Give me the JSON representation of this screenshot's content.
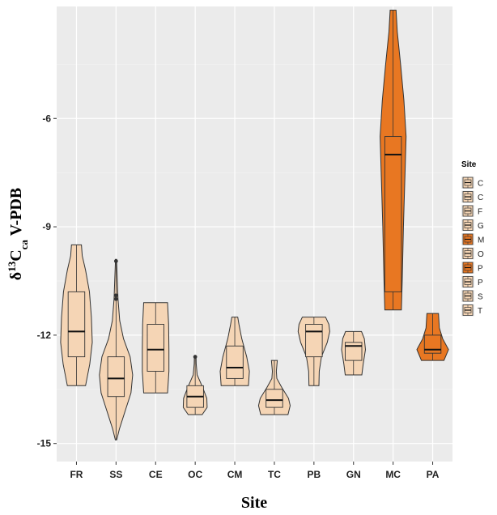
{
  "chart_data": {
    "type": "violin",
    "xlabel": "Site",
    "ylabel": {
      "main": "δ",
      "sup": "13",
      "sym": "C",
      "sub": "ca",
      "tail": " V-PDB"
    },
    "y_ticks": [
      -6,
      -9,
      -12,
      -15
    ],
    "y_tick_labels": [
      "-6",
      "-9",
      "-12",
      "-15"
    ],
    "ylim": [
      -15.5,
      -2.9
    ],
    "grid": true,
    "legend": {
      "title": "Site",
      "placement": "right",
      "entries": [
        {
          "label": "C",
          "color": "#f5d5b5"
        },
        {
          "label": "C",
          "color": "#f5d5b5"
        },
        {
          "label": "F",
          "color": "#f5d5b5"
        },
        {
          "label": "G",
          "color": "#f5d5b5"
        },
        {
          "label": "M",
          "color": "#e87722"
        },
        {
          "label": "O",
          "color": "#f5d5b5"
        },
        {
          "label": "P",
          "color": "#e87722"
        },
        {
          "label": "P",
          "color": "#f5d5b5"
        },
        {
          "label": "S",
          "color": "#f5d5b5"
        },
        {
          "label": "T",
          "color": "#f5d5b5"
        }
      ]
    },
    "colors": {
      "light": "#f5d5b5",
      "dark": "#e87722",
      "panel": "#ebebeb",
      "outline": "#333333"
    },
    "categories": [
      "FR",
      "SS",
      "CE",
      "OC",
      "CM",
      "TC",
      "PB",
      "GN",
      "MC",
      "PA"
    ],
    "sites": [
      {
        "name": "FR",
        "fill": "light",
        "min": -13.4,
        "max": -9.5,
        "q1": -12.6,
        "median": -11.9,
        "q3": -10.8,
        "profile": [
          [
            -13.4,
            0.55
          ],
          [
            -12.8,
            0.8
          ],
          [
            -12.2,
            0.95
          ],
          [
            -11.5,
            0.9
          ],
          [
            -10.8,
            0.78
          ],
          [
            -10.2,
            0.55
          ],
          [
            -9.8,
            0.35
          ],
          [
            -9.5,
            0.3
          ]
        ]
      },
      {
        "name": "SS",
        "fill": "light",
        "min": -14.9,
        "max": -9.9,
        "q1": -13.7,
        "median": -13.2,
        "q3": -12.6,
        "profile": [
          [
            -14.9,
            0.04
          ],
          [
            -14.6,
            0.2
          ],
          [
            -14.1,
            0.55
          ],
          [
            -13.6,
            0.9
          ],
          [
            -13.1,
            1.0
          ],
          [
            -12.6,
            0.85
          ],
          [
            -12.1,
            0.45
          ],
          [
            -11.6,
            0.22
          ],
          [
            -11.0,
            0.12
          ],
          [
            -10.5,
            0.08
          ],
          [
            -9.9,
            0.03
          ]
        ],
        "outliers": [
          -9.95,
          -10.9,
          -11.0
        ]
      },
      {
        "name": "CE",
        "fill": "light",
        "min": -13.6,
        "max": -11.1,
        "q1": -13.0,
        "median": -12.4,
        "q3": -11.7,
        "profile": [
          [
            -13.6,
            0.72
          ],
          [
            -13.0,
            0.8
          ],
          [
            -12.4,
            0.8
          ],
          [
            -11.7,
            0.78
          ],
          [
            -11.1,
            0.72
          ]
        ]
      },
      {
        "name": "OC",
        "fill": "light",
        "min": -14.2,
        "max": -12.6,
        "q1": -14.0,
        "median": -13.7,
        "q3": -13.4,
        "profile": [
          [
            -14.2,
            0.42
          ],
          [
            -14.0,
            0.72
          ],
          [
            -13.75,
            0.7
          ],
          [
            -13.45,
            0.45
          ],
          [
            -13.1,
            0.12
          ],
          [
            -12.8,
            0.06
          ],
          [
            -12.6,
            0.05
          ]
        ],
        "outliers": [
          -12.6
        ]
      },
      {
        "name": "CM",
        "fill": "light",
        "min": -13.4,
        "max": -11.5,
        "q1": -13.2,
        "median": -12.9,
        "q3": -12.3,
        "profile": [
          [
            -13.4,
            0.82
          ],
          [
            -13.0,
            0.88
          ],
          [
            -12.6,
            0.72
          ],
          [
            -12.1,
            0.42
          ],
          [
            -11.7,
            0.25
          ],
          [
            -11.5,
            0.18
          ]
        ]
      },
      {
        "name": "TC",
        "fill": "light",
        "min": -14.2,
        "max": -12.7,
        "q1": -14.0,
        "median": -13.8,
        "q3": -13.5,
        "profile": [
          [
            -14.2,
            0.82
          ],
          [
            -13.95,
            0.95
          ],
          [
            -13.75,
            0.85
          ],
          [
            -13.45,
            0.45
          ],
          [
            -13.2,
            0.15
          ],
          [
            -13.0,
            0.12
          ],
          [
            -12.7,
            0.18
          ]
        ]
      },
      {
        "name": "PB",
        "fill": "light",
        "min": -13.4,
        "max": -11.5,
        "q1": -12.6,
        "median": -11.9,
        "q3": -11.7,
        "profile": [
          [
            -13.4,
            0.3
          ],
          [
            -13.0,
            0.32
          ],
          [
            -12.6,
            0.45
          ],
          [
            -12.2,
            0.8
          ],
          [
            -11.9,
            0.95
          ],
          [
            -11.7,
            0.9
          ],
          [
            -11.5,
            0.7
          ]
        ]
      },
      {
        "name": "GN",
        "fill": "light",
        "min": -13.1,
        "max": -11.9,
        "q1": -12.7,
        "median": -12.3,
        "q3": -12.2,
        "profile": [
          [
            -13.1,
            0.5
          ],
          [
            -12.8,
            0.58
          ],
          [
            -12.4,
            0.72
          ],
          [
            -12.1,
            0.65
          ],
          [
            -11.9,
            0.48
          ]
        ]
      },
      {
        "name": "MC",
        "fill": "dark",
        "min": -11.3,
        "max": -3.0,
        "q1": -10.8,
        "median": -7.0,
        "q3": -6.5,
        "profile": [
          [
            -11.3,
            0.5
          ],
          [
            -10.5,
            0.55
          ],
          [
            -9.0,
            0.62
          ],
          [
            -7.5,
            0.72
          ],
          [
            -6.5,
            0.78
          ],
          [
            -5.5,
            0.65
          ],
          [
            -4.5,
            0.45
          ],
          [
            -3.6,
            0.25
          ],
          [
            -3.0,
            0.18
          ]
        ]
      },
      {
        "name": "PA",
        "fill": "dark",
        "min": -12.7,
        "max": -11.4,
        "q1": -12.5,
        "median": -12.4,
        "q3": -12.0,
        "profile": [
          [
            -12.7,
            0.68
          ],
          [
            -12.4,
            0.95
          ],
          [
            -12.1,
            0.6
          ],
          [
            -11.8,
            0.4
          ],
          [
            -11.4,
            0.35
          ]
        ]
      }
    ]
  }
}
